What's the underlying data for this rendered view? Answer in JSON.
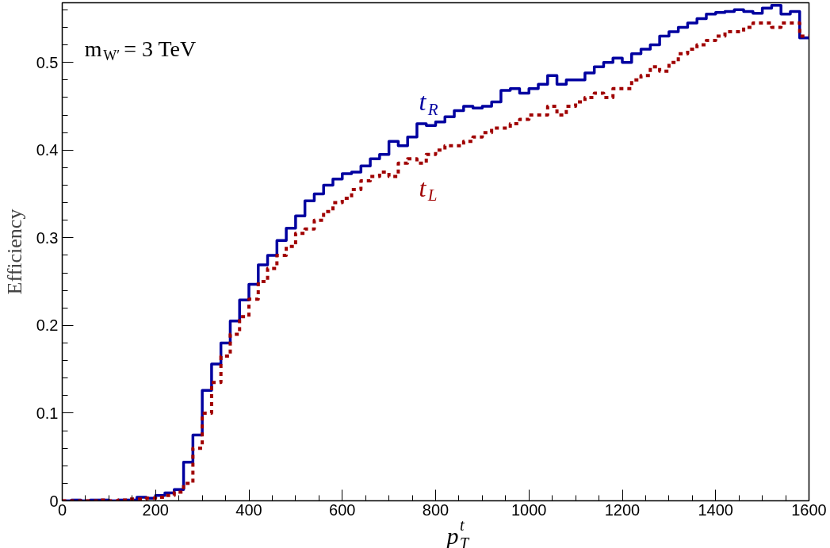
{
  "chart_data": {
    "type": "histogram",
    "xlabel": "p$^{t}$$_{T}$",
    "ylabel": "Efficiency",
    "annotations": [
      "m$_{W′}$ = 3 TeV"
    ],
    "bins": [
      0,
      20,
      40,
      60,
      80,
      100,
      120,
      140,
      160,
      180,
      200,
      220,
      240,
      260,
      280,
      300,
      320,
      340,
      360,
      380,
      400,
      420,
      440,
      460,
      480,
      500,
      520,
      540,
      560,
      580,
      600,
      620,
      640,
      660,
      680,
      700,
      720,
      740,
      760,
      780,
      800,
      820,
      840,
      860,
      880,
      900,
      920,
      940,
      960,
      980,
      1000,
      1020,
      1040,
      1060,
      1080,
      1100,
      1120,
      1140,
      1160,
      1180,
      1200,
      1220,
      1240,
      1260,
      1280,
      1300,
      1320,
      1340,
      1360,
      1380,
      1400,
      1420,
      1440,
      1460,
      1480,
      1500,
      1520,
      1540,
      1560,
      1580,
      1600
    ],
    "series": [
      {
        "name": "t$_{R}$",
        "color": "#0000a0",
        "line_style": "solid",
        "values": [
          0.0,
          0.001,
          0.0,
          0.001,
          0.001,
          0.0,
          0.001,
          0.001,
          0.004,
          0.003,
          0.006,
          0.009,
          0.013,
          0.044,
          0.075,
          0.126,
          0.156,
          0.18,
          0.205,
          0.229,
          0.247,
          0.269,
          0.28,
          0.297,
          0.311,
          0.325,
          0.342,
          0.35,
          0.36,
          0.367,
          0.373,
          0.375,
          0.382,
          0.39,
          0.395,
          0.41,
          0.405,
          0.415,
          0.43,
          0.428,
          0.432,
          0.438,
          0.445,
          0.45,
          0.448,
          0.45,
          0.455,
          0.468,
          0.47,
          0.465,
          0.47,
          0.475,
          0.485,
          0.475,
          0.48,
          0.48,
          0.488,
          0.495,
          0.5,
          0.505,
          0.5,
          0.51,
          0.515,
          0.52,
          0.53,
          0.535,
          0.54,
          0.545,
          0.55,
          0.555,
          0.557,
          0.558,
          0.56,
          0.558,
          0.556,
          0.562,
          0.565,
          0.555,
          0.558,
          0.528
        ]
      },
      {
        "name": "t$_{L}$",
        "color": "#a00000",
        "line_style": "dotted",
        "values": [
          0.0,
          0.0,
          0.0,
          0.0,
          0.001,
          0.0,
          0.001,
          0.002,
          0.002,
          0.003,
          0.004,
          0.006,
          0.01,
          0.02,
          0.06,
          0.1,
          0.135,
          0.165,
          0.19,
          0.21,
          0.23,
          0.25,
          0.265,
          0.28,
          0.29,
          0.305,
          0.31,
          0.32,
          0.33,
          0.34,
          0.345,
          0.355,
          0.365,
          0.37,
          0.375,
          0.37,
          0.385,
          0.39,
          0.385,
          0.395,
          0.4,
          0.405,
          0.405,
          0.41,
          0.415,
          0.42,
          0.425,
          0.425,
          0.43,
          0.435,
          0.44,
          0.44,
          0.45,
          0.44,
          0.45,
          0.455,
          0.46,
          0.465,
          0.46,
          0.47,
          0.47,
          0.48,
          0.485,
          0.495,
          0.49,
          0.5,
          0.51,
          0.515,
          0.52,
          0.525,
          0.53,
          0.535,
          0.535,
          0.54,
          0.545,
          0.545,
          0.54,
          0.545,
          0.545,
          0.53
        ]
      }
    ],
    "xlim": [
      0,
      1600
    ],
    "ylim": [
      0,
      0.568
    ],
    "xticks": [
      0,
      200,
      400,
      600,
      800,
      1000,
      1200,
      1400,
      1600
    ],
    "yticks": [
      0,
      0.1,
      0.2,
      0.3,
      0.4,
      0.5
    ],
    "grid": false
  }
}
